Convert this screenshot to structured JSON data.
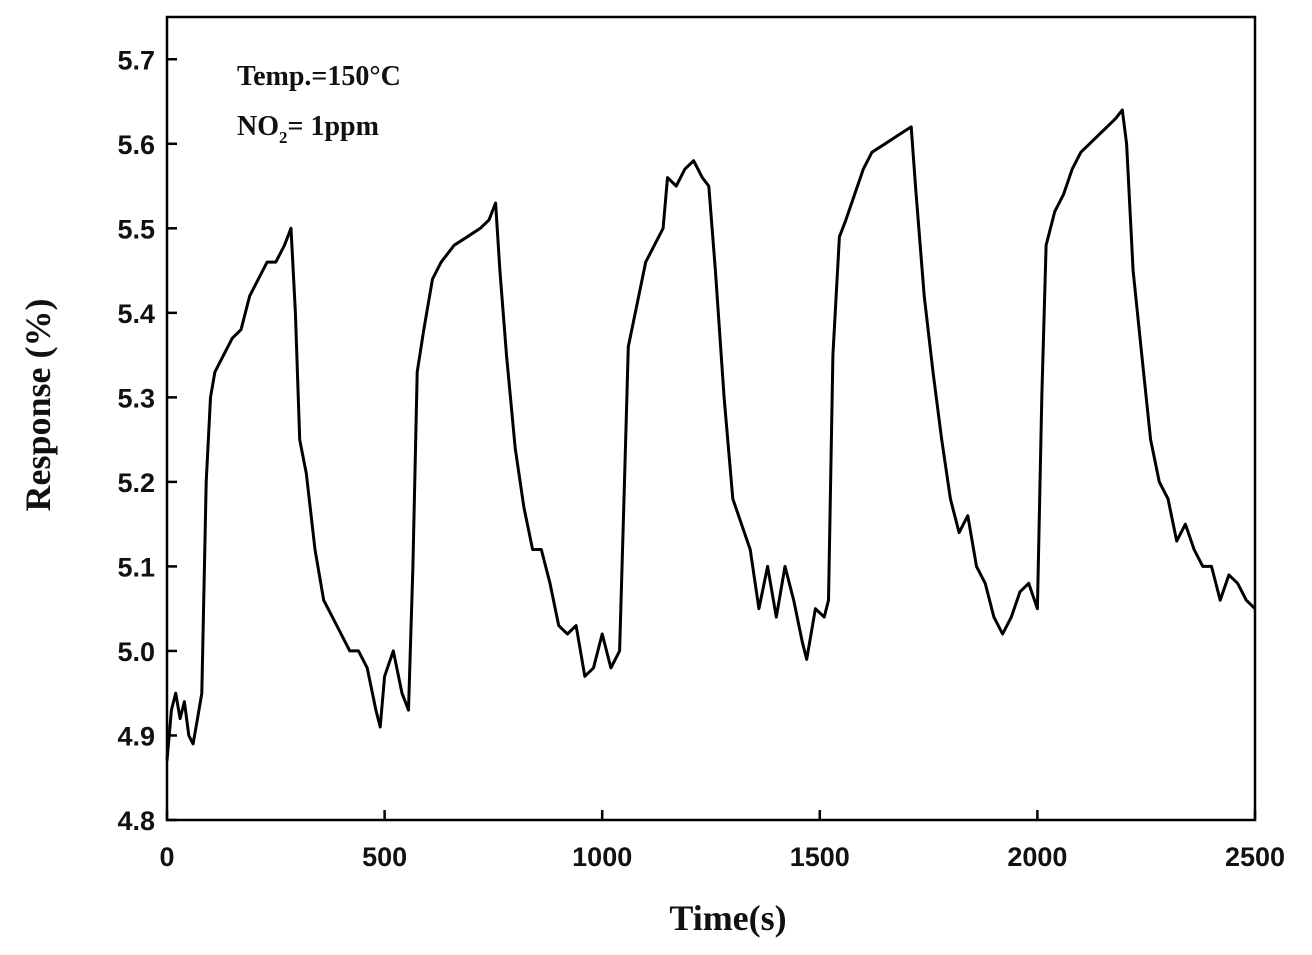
{
  "chart_data": {
    "type": "line",
    "x_label": "Time(s)",
    "y_label": "Response (%)",
    "annotations": [
      "Temp.=150°C",
      {
        "base": "NO",
        "sub": "2",
        "rest": "= 1ppm"
      }
    ],
    "color": "#000000",
    "xlim": [
      0,
      2500
    ],
    "xticks": [
      0,
      500,
      1000,
      1500,
      2000,
      2500
    ],
    "ylim": [
      4.8,
      5.75
    ],
    "yticks": [
      4.8,
      4.9,
      {
        "value": 5,
        "label": "5.0"
      },
      5.1,
      5.2,
      5.3,
      5.4,
      5.5,
      5.6,
      5.7
    ],
    "x": [
      0,
      10,
      20,
      30,
      40,
      50,
      60,
      70,
      80,
      90,
      100,
      110,
      130,
      150,
      170,
      190,
      210,
      230,
      250,
      270,
      285,
      295,
      305,
      320,
      340,
      360,
      380,
      400,
      420,
      440,
      460,
      480,
      490,
      500,
      520,
      540,
      555,
      565,
      575,
      590,
      610,
      630,
      660,
      690,
      720,
      740,
      755,
      765,
      780,
      800,
      820,
      840,
      860,
      880,
      900,
      920,
      940,
      960,
      980,
      1000,
      1020,
      1040,
      1050,
      1060,
      1080,
      1100,
      1120,
      1140,
      1150,
      1170,
      1190,
      1210,
      1230,
      1245,
      1260,
      1280,
      1300,
      1320,
      1340,
      1360,
      1380,
      1400,
      1420,
      1440,
      1460,
      1470,
      1490,
      1510,
      1520,
      1530,
      1545,
      1560,
      1580,
      1600,
      1620,
      1650,
      1680,
      1710,
      1720,
      1740,
      1760,
      1780,
      1800,
      1820,
      1840,
      1860,
      1880,
      1900,
      1920,
      1940,
      1960,
      1980,
      2000,
      2010,
      2020,
      2040,
      2060,
      2080,
      2100,
      2120,
      2140,
      2160,
      2180,
      2195,
      2205,
      2220,
      2240,
      2260,
      2280,
      2300,
      2320,
      2340,
      2360,
      2380,
      2400,
      2420,
      2440,
      2460,
      2480,
      2500
    ],
    "values": [
      4.87,
      4.93,
      4.95,
      4.92,
      4.94,
      4.9,
      4.89,
      4.92,
      4.95,
      5.2,
      5.3,
      5.33,
      5.35,
      5.37,
      5.38,
      5.42,
      5.44,
      5.46,
      5.46,
      5.48,
      5.5,
      5.4,
      5.25,
      5.21,
      5.12,
      5.06,
      5.04,
      5.02,
      5.0,
      5.0,
      4.98,
      4.93,
      4.91,
      4.97,
      5.0,
      4.95,
      4.93,
      5.1,
      5.33,
      5.38,
      5.44,
      5.46,
      5.48,
      5.49,
      5.5,
      5.51,
      5.53,
      5.45,
      5.35,
      5.24,
      5.17,
      5.12,
      5.12,
      5.08,
      5.03,
      5.02,
      5.03,
      4.97,
      4.98,
      5.02,
      4.98,
      5.0,
      5.18,
      5.36,
      5.41,
      5.46,
      5.48,
      5.5,
      5.56,
      5.55,
      5.57,
      5.58,
      5.56,
      5.55,
      5.45,
      5.3,
      5.18,
      5.15,
      5.12,
      5.05,
      5.1,
      5.04,
      5.1,
      5.06,
      5.01,
      4.99,
      5.05,
      5.04,
      5.06,
      5.35,
      5.49,
      5.51,
      5.54,
      5.57,
      5.59,
      5.6,
      5.61,
      5.62,
      5.55,
      5.42,
      5.33,
      5.25,
      5.18,
      5.14,
      5.16,
      5.1,
      5.08,
      5.04,
      5.02,
      5.04,
      5.07,
      5.08,
      5.05,
      5.3,
      5.48,
      5.52,
      5.54,
      5.57,
      5.59,
      5.6,
      5.61,
      5.62,
      5.63,
      5.64,
      5.6,
      5.45,
      5.35,
      5.25,
      5.2,
      5.18,
      5.13,
      5.15,
      5.12,
      5.1,
      5.1,
      5.06,
      5.09,
      5.08,
      5.06,
      5.05
    ]
  }
}
